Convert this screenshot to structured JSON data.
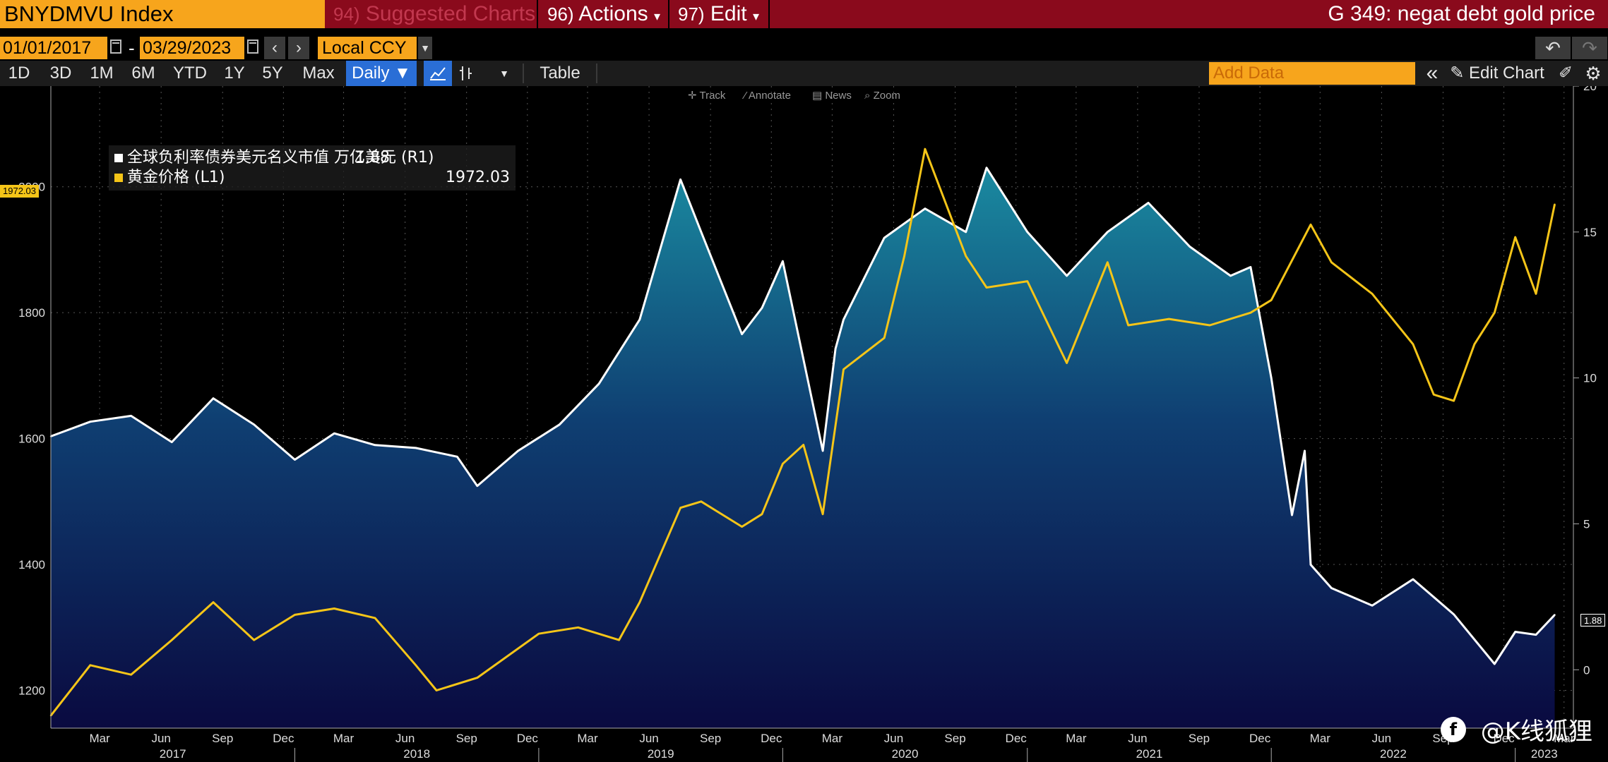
{
  "titlebar": {
    "ticker": "BNYDMVU Index",
    "menus": [
      {
        "num": "94)",
        "label": "Suggested Charts",
        "dim": true
      },
      {
        "num": "96)",
        "label": "Actions",
        "caret": "▾"
      },
      {
        "num": "97)",
        "label": "Edit",
        "caret": "▾"
      }
    ],
    "right_title": "G 349: negat debt gold price"
  },
  "dates": {
    "start": "01/01/2017",
    "sep": "-",
    "end": "03/29/2023"
  },
  "currency": "Local CCY",
  "periods": [
    "1D",
    "3D",
    "1M",
    "6M",
    "YTD",
    "1Y",
    "5Y",
    "Max"
  ],
  "frequency": "Daily ▼",
  "table_label": "Table",
  "add_data_placeholder": "Add Data",
  "edit_chart_label": "Edit Chart",
  "chart_tools": [
    "Track",
    "Annotate",
    "News",
    "Zoom"
  ],
  "legend": [
    {
      "name": "全球负利率债券美元名义市值 万亿美元 (R1)",
      "value": "1.88",
      "color": "#ffffff"
    },
    {
      "name": "黄金价格 (L1)",
      "value": "1972.03",
      "color": "#f5c518"
    }
  ],
  "current_tags": {
    "left": "1972.03",
    "right": "1.88"
  },
  "watermark": "@K线狐狸",
  "colors": {
    "gold": "#f5c518",
    "debt_line": "#ffffff",
    "area_top": "#1a8aa0",
    "area_bottom": "#0a0a40",
    "orange": "#f7a51c",
    "titlebar": "#8a0a1c"
  },
  "chart_data": {
    "type": "line",
    "x_axis": {
      "months": [
        "Mar",
        "Jun",
        "Sep",
        "Dec",
        "Mar",
        "Jun",
        "Sep",
        "Dec",
        "Mar",
        "Jun",
        "Sep",
        "Dec",
        "Mar",
        "Jun",
        "Sep",
        "Dec",
        "Mar",
        "Jun",
        "Sep",
        "Dec",
        "Mar",
        "Jun",
        "Sep",
        "Dec",
        "Mar"
      ],
      "years": [
        "2017",
        "2018",
        "2019",
        "2020",
        "2021",
        "2022",
        "2023"
      ],
      "range": [
        "2017-01-01",
        "2023-03-29"
      ]
    },
    "left_axis": {
      "ticks": [
        1200,
        1400,
        1600,
        1800,
        2000
      ],
      "range": [
        1140,
        2160
      ]
    },
    "right_axis": {
      "ticks": [
        0,
        5,
        10,
        15,
        20
      ],
      "range": [
        -2,
        20
      ]
    },
    "series": [
      {
        "name": "全球负利率债券美元名义市值 万亿美元 (R1)",
        "axis": "right",
        "style": "area",
        "x": [
          "2017-01",
          "2017-03",
          "2017-05",
          "2017-07",
          "2017-09",
          "2017-11",
          "2018-01",
          "2018-03",
          "2018-05",
          "2018-07",
          "2018-09",
          "2018-10",
          "2018-12",
          "2019-02",
          "2019-04",
          "2019-06",
          "2019-08",
          "2019-09",
          "2019-11",
          "2019-12",
          "2020-01",
          "2020-03",
          "2020-03-20",
          "2020-04",
          "2020-06",
          "2020-08",
          "2020-10",
          "2020-11",
          "2021-01",
          "2021-03",
          "2021-05",
          "2021-07",
          "2021-09",
          "2021-11",
          "2021-12",
          "2022-01",
          "2022-02",
          "2022-02-20",
          "2022-03",
          "2022-04",
          "2022-06",
          "2022-08",
          "2022-10",
          "2022-12",
          "2023-01",
          "2023-02",
          "2023-03"
        ],
        "y": [
          8,
          8.5,
          8.7,
          7.8,
          9.3,
          8.4,
          7.2,
          8.1,
          7.7,
          7.6,
          7.3,
          6.3,
          7.5,
          8.4,
          9.8,
          12,
          16.8,
          15,
          11.5,
          12.4,
          14,
          7.5,
          11,
          12,
          14.8,
          15.8,
          15,
          17.2,
          15,
          13.5,
          15,
          16,
          14.5,
          13.5,
          13.8,
          10,
          5.3,
          7.5,
          3.6,
          2.8,
          2.2,
          3.1,
          1.9,
          0.2,
          1.3,
          1.2,
          1.88
        ]
      },
      {
        "name": "黄金价格 (L1)",
        "axis": "left",
        "style": "line",
        "x": [
          "2017-01",
          "2017-03",
          "2017-05",
          "2017-07",
          "2017-09",
          "2017-11",
          "2018-01",
          "2018-03",
          "2018-05",
          "2018-07",
          "2018-08",
          "2018-10",
          "2019-01",
          "2019-03",
          "2019-05",
          "2019-06",
          "2019-08",
          "2019-09",
          "2019-11",
          "2019-12",
          "2020-01",
          "2020-02",
          "2020-03",
          "2020-04",
          "2020-06",
          "2020-07",
          "2020-08",
          "2020-10",
          "2020-11",
          "2021-01",
          "2021-03",
          "2021-05",
          "2021-06",
          "2021-08",
          "2021-10",
          "2021-12",
          "2022-01",
          "2022-03",
          "2022-04",
          "2022-06",
          "2022-08",
          "2022-09",
          "2022-10",
          "2022-11",
          "2022-12",
          "2023-01",
          "2023-02",
          "2023-03"
        ],
        "y": [
          1160,
          1240,
          1225,
          1280,
          1340,
          1280,
          1320,
          1330,
          1315,
          1240,
          1200,
          1220,
          1290,
          1300,
          1280,
          1340,
          1490,
          1500,
          1460,
          1480,
          1560,
          1590,
          1480,
          1710,
          1760,
          1890,
          2060,
          1890,
          1840,
          1850,
          1720,
          1880,
          1780,
          1790,
          1780,
          1800,
          1820,
          1940,
          1880,
          1830,
          1750,
          1670,
          1660,
          1750,
          1800,
          1920,
          1830,
          1972.03
        ]
      }
    ]
  }
}
